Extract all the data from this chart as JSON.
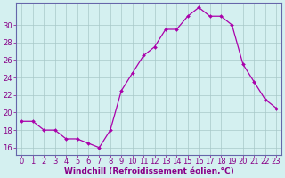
{
  "x": [
    0,
    1,
    2,
    3,
    4,
    5,
    6,
    7,
    8,
    9,
    10,
    11,
    12,
    13,
    14,
    15,
    16,
    17,
    18,
    19,
    20,
    21,
    22,
    23
  ],
  "y": [
    19,
    19,
    18,
    18,
    17,
    17,
    16.5,
    16,
    18,
    22.5,
    24.5,
    26.5,
    27.5,
    29.5,
    29.5,
    31,
    32,
    31,
    31,
    30,
    25.5,
    23.5,
    21.5,
    20.5
  ],
  "line_color": "#aa00aa",
  "marker_color": "#aa00aa",
  "bg_color": "#d4f0f0",
  "grid_color": "#a8c8c8",
  "axis_color": "#6666aa",
  "xlabel": "Windchill (Refroidissement éolien,°C)",
  "xlabel_color": "#880088",
  "xlabel_fontsize": 6.5,
  "tick_fontsize": 6.0,
  "tick_color": "#880088",
  "yticks": [
    16,
    18,
    20,
    22,
    24,
    26,
    28,
    30
  ],
  "ylim": [
    15.2,
    32.5
  ],
  "xlim": [
    -0.5,
    23.5
  ]
}
